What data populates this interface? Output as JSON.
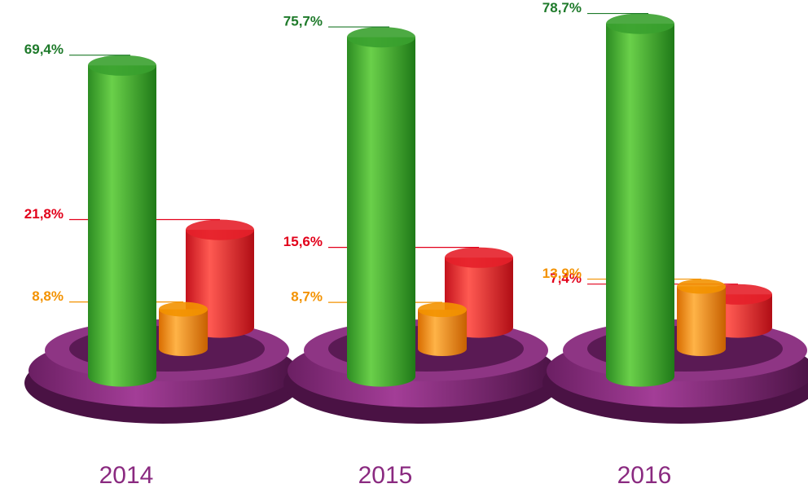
{
  "chart_data": {
    "type": "cylinder-bar",
    "categories": [
      "2014",
      "2015",
      "2016"
    ],
    "series": [
      {
        "color": "#3aa12f",
        "label_color": "#1e7a2a",
        "values": [
          69.4,
          75.7,
          78.7
        ],
        "value_labels": [
          "69,4%",
          "75,7%",
          "78,7%"
        ]
      },
      {
        "color": "#f39200",
        "label_color": "#f39200",
        "values": [
          8.8,
          8.7,
          13.9
        ],
        "value_labels": [
          "8,8%",
          "8,7%",
          "13,9%"
        ]
      },
      {
        "color": "#e5202a",
        "label_color": "#e2001a",
        "values": [
          21.8,
          15.6,
          7.4
        ],
        "value_labels": [
          "21,8%",
          "15,6%",
          "7,4%"
        ]
      }
    ]
  }
}
